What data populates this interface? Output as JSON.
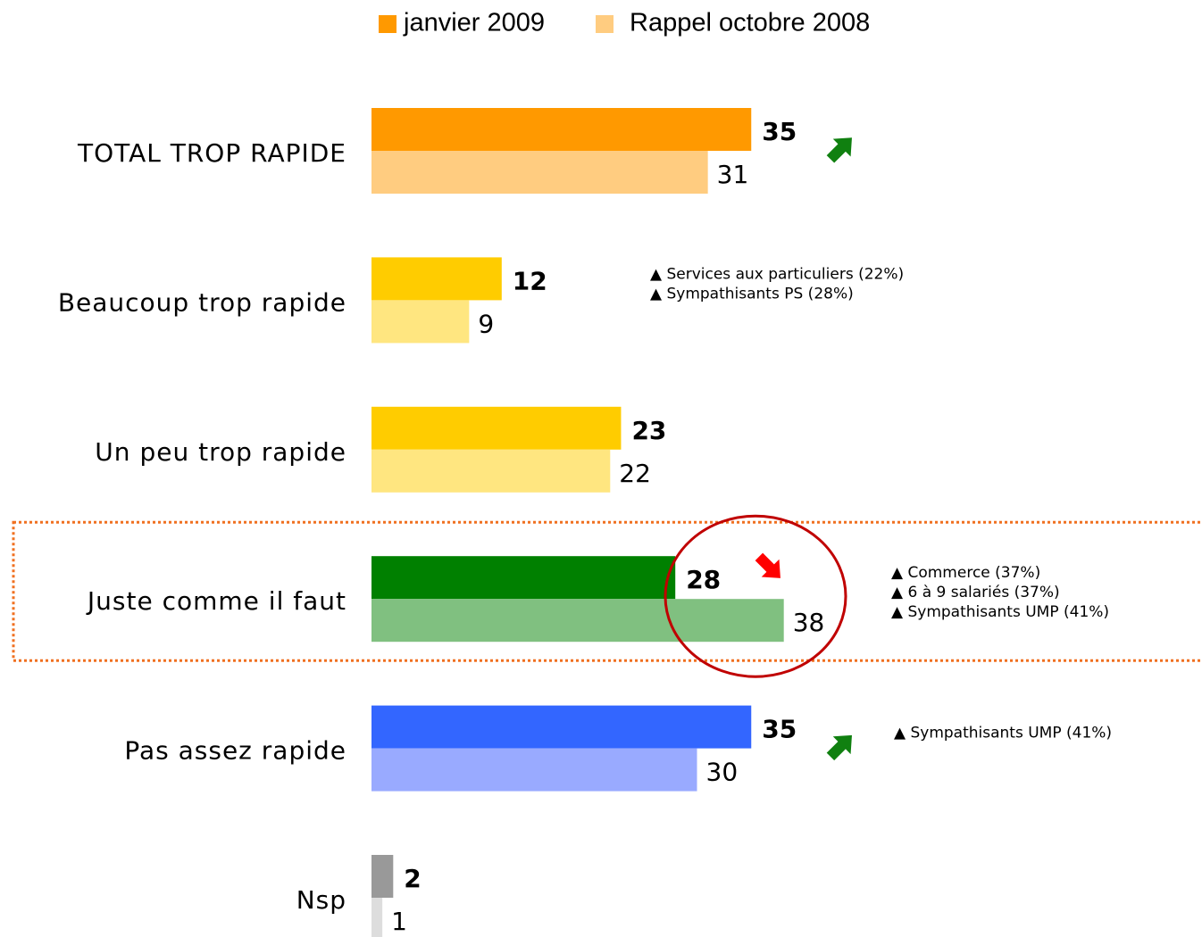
{
  "chart_data": {
    "type": "hbar",
    "categories": [
      "TOTAL TROP RAPIDE",
      "Beaucoup trop rapide",
      "Un peu trop rapide",
      "Juste comme il faut",
      "Pas assez rapide",
      "Nsp"
    ],
    "series": [
      {
        "name": "janvier 2009",
        "color": "#ff9900",
        "values": [
          35,
          12,
          23,
          28,
          35,
          2
        ],
        "colors": [
          "#ff9900",
          "#ffcc00",
          "#ffcc00",
          "#008000",
          "#3366ff",
          "#999999"
        ]
      },
      {
        "name": "Rappel octobre 2008",
        "color": "#ffcc80",
        "values": [
          31,
          9,
          22,
          38,
          30,
          1
        ],
        "colors": [
          "#ffcc80",
          "#ffe680",
          "#ffe680",
          "#80c080",
          "#99aaff",
          "#dddddd"
        ]
      }
    ],
    "trend": [
      "up",
      null,
      null,
      "down",
      "up",
      null
    ],
    "annotations": [
      [],
      [
        "▲ Services aux particuliers (22%)",
        "▲ Sympathisants PS (28%)"
      ],
      [],
      [
        "▲ Commerce (37%)",
        "▲ 6 à 9 salariés (37%)",
        "▲ Sympathisants UMP (41%)"
      ],
      [
        "▲ Sympathisants UMP (41%)"
      ],
      []
    ],
    "highlight_category": "Juste comme il faut"
  }
}
